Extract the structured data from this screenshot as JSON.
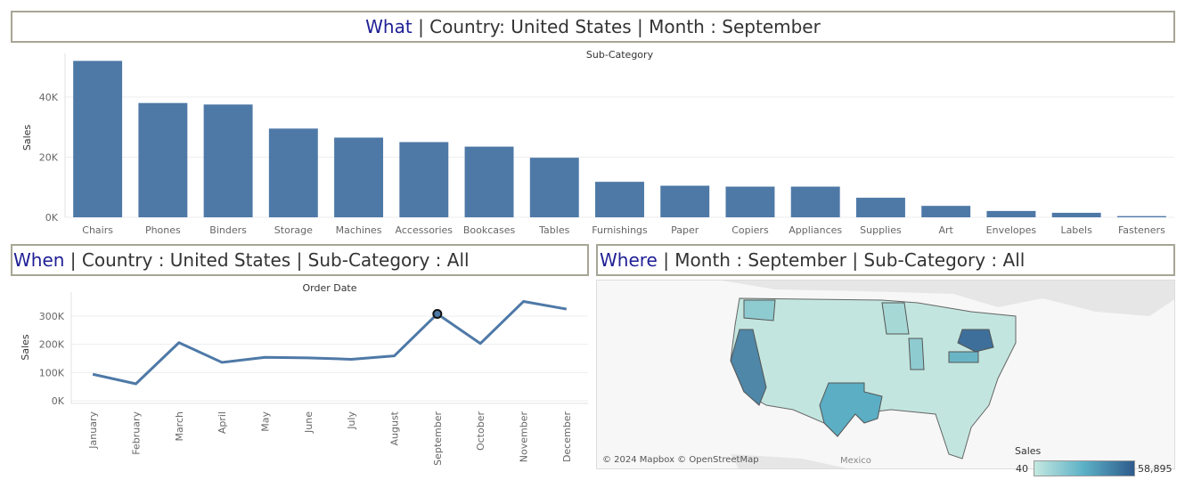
{
  "header": {
    "kw": "What",
    "rest": " | Country: United States | Month : September"
  },
  "when_header": {
    "kw": "When",
    "rest": " | Country : United States | Sub-Category : All"
  },
  "where_header": {
    "kw": "Where",
    "rest": " | Month : September | Sub-Category : All"
  },
  "colors": {
    "bar": "#4e79a7",
    "line": "#4e79a7",
    "keyword": "#1f1f96",
    "frame": "#a7a595"
  },
  "chart_data": [
    {
      "type": "bar",
      "title": "Sub-Category",
      "ylabel": "Sales",
      "xlabel": "",
      "categories": [
        "Chairs",
        "Phones",
        "Binders",
        "Storage",
        "Machines",
        "Accessories",
        "Bookcases",
        "Tables",
        "Furnishings",
        "Paper",
        "Copiers",
        "Appliances",
        "Supplies",
        "Art",
        "Envelopes",
        "Labels",
        "Fasteners"
      ],
      "values": [
        52000,
        38000,
        37500,
        29500,
        26500,
        25000,
        23500,
        19800,
        11800,
        10500,
        10200,
        10200,
        6500,
        3800,
        2100,
        1500,
        400
      ],
      "ylim": [
        0,
        53000
      ],
      "yticks": [
        0,
        20000,
        40000
      ],
      "ytick_labels": [
        "0K",
        "20K",
        "40K"
      ]
    },
    {
      "type": "line",
      "title": "Order Date",
      "ylabel": "Sales",
      "xlabel": "",
      "x": [
        "January",
        "February",
        "March",
        "April",
        "May",
        "June",
        "July",
        "August",
        "September",
        "October",
        "November",
        "December"
      ],
      "values": [
        94000,
        60000,
        206000,
        136000,
        154000,
        152000,
        147000,
        159000,
        308000,
        203000,
        352000,
        325000
      ],
      "highlight_index": 8,
      "ylim": [
        0,
        360000
      ],
      "yticks": [
        0,
        100000,
        200000,
        300000
      ],
      "ytick_labels": [
        "0K",
        "100K",
        "200K",
        "300K"
      ]
    },
    {
      "type": "map",
      "legend_title": "Sales",
      "legend_min": "40",
      "legend_max": "58,895",
      "credits": "© 2024 Mapbox © OpenStreetMap",
      "label": "Mexico"
    }
  ]
}
